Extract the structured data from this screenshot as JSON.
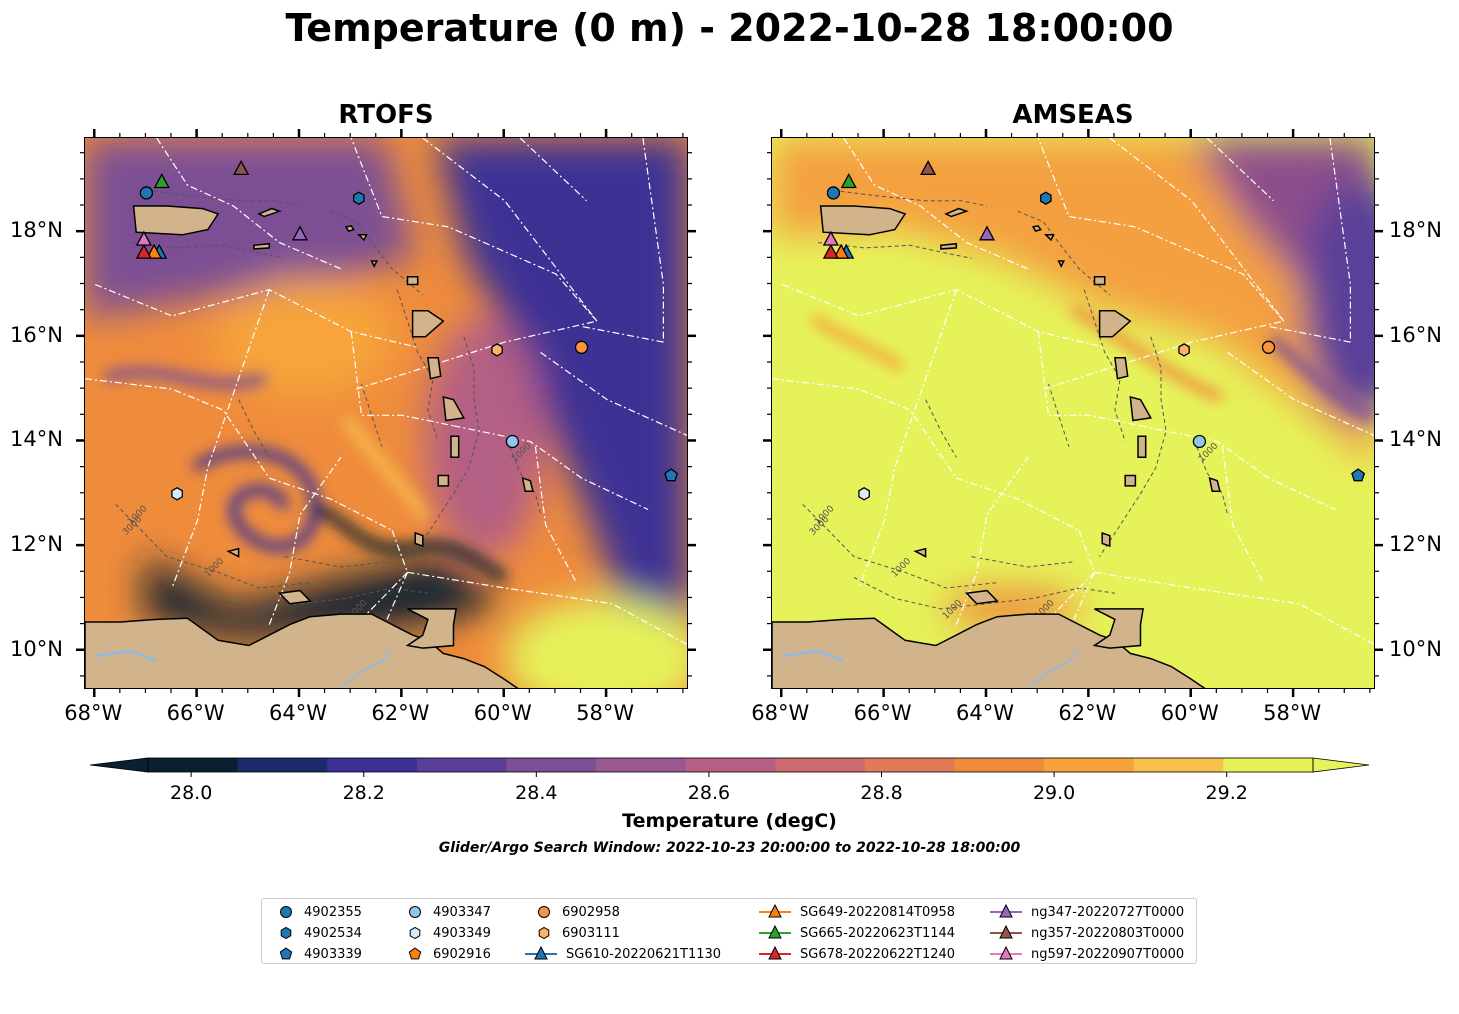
{
  "title": "Temperature (0 m) - 2022-10-28 18:00:00",
  "panels": [
    {
      "title": "RTOFS",
      "colors": {
        "open_ocean": "#3c3094",
        "mid": "#ef8c3c",
        "warm": "#f9c04c",
        "cold": "#082030"
      }
    },
    {
      "title": "AMSEAS",
      "colors": {
        "open_ocean": "#8c4e8c",
        "mid": "#f4a040",
        "warm": "#e6f25a",
        "cold": "#e6f25a"
      }
    }
  ],
  "axes": {
    "lat_ticks": [
      "18°N",
      "16°N",
      "14°N",
      "12°N",
      "10°N"
    ],
    "lon_ticks": [
      "68°W",
      "66°W",
      "64°W",
      "62°W",
      "60°W",
      "58°W"
    ]
  },
  "colors": {
    "land": "#d2b48c",
    "river": "#9ab8d8",
    "boundary": "#ffffff",
    "contour": "#555555"
  },
  "contour_labels": [
    "1000",
    "1000",
    "1000",
    "3000",
    "1000",
    "1000"
  ],
  "colorbar": {
    "label": "Temperature (degC)",
    "ticks": [
      "28.0",
      "28.2",
      "28.4",
      "28.6",
      "28.8",
      "29.0",
      "29.2"
    ],
    "min": 27.95,
    "max": 29.3,
    "colors": [
      "#082030",
      "#1b2a6b",
      "#3c3094",
      "#5a3f98",
      "#7c4f94",
      "#9a5890",
      "#b45f84",
      "#cc6a70",
      "#e07a58",
      "#ef8c3c",
      "#f6a43a",
      "#f9c04c",
      "#e6f25a"
    ]
  },
  "subtitle": "Glider/Argo Search Window: 2022-10-23 20:00:00 to 2022-10-28 18:00:00",
  "legend": [
    {
      "label": "4902355",
      "marker": "circle",
      "color": "#1f77b4"
    },
    {
      "label": "4902534",
      "marker": "hexagon",
      "color": "#1f77b4"
    },
    {
      "label": "4903339",
      "marker": "pentagon",
      "color": "#1f77b4"
    },
    {
      "label": "4903347",
      "marker": "circle",
      "color": "#8fc6ea"
    },
    {
      "label": "4903349",
      "marker": "hexagon",
      "color": "#d6ecfa"
    },
    {
      "label": "6902916",
      "marker": "pentagon",
      "color": "#ff7f0e"
    },
    {
      "label": "6902958",
      "marker": "circle",
      "color": "#f7953a"
    },
    {
      "label": "6903111",
      "marker": "hexagon",
      "color": "#fdb26a"
    },
    {
      "label": "SG610-20220621T1130",
      "marker": "triangle-line",
      "color": "#1f77b4"
    },
    {
      "label": "SG649-20220814T0958",
      "marker": "triangle-line",
      "color": "#ff7f0e"
    },
    {
      "label": "SG665-20220623T1144",
      "marker": "triangle-line",
      "color": "#2ca02c"
    },
    {
      "label": "SG678-20220622T1240",
      "marker": "triangle-line",
      "color": "#d62728"
    },
    {
      "label": "ng347-20220727T0000",
      "marker": "triangle-line",
      "color": "#9467bd"
    },
    {
      "label": "ng357-20220803T0000",
      "marker": "triangle-line",
      "color": "#8c564b"
    },
    {
      "label": "ng597-20220907T0000",
      "marker": "triangle-line",
      "color": "#e377c2"
    }
  ],
  "stations": [
    {
      "id": "4902355",
      "lon": -67.0,
      "lat": 18.75,
      "marker": "circle",
      "color": "#1f77b4"
    },
    {
      "id": "4902534",
      "lon": -62.85,
      "lat": 18.65,
      "marker": "hexagon",
      "color": "#1f77b4"
    },
    {
      "id": "4903339",
      "lon": -56.75,
      "lat": 13.35,
      "marker": "pentagon",
      "color": "#1f77b4"
    },
    {
      "id": "4903347",
      "lon": -59.85,
      "lat": 14.0,
      "marker": "circle",
      "color": "#8fc6ea"
    },
    {
      "id": "4903349",
      "lon": -66.4,
      "lat": 13.0,
      "marker": "hexagon",
      "color": "#d6ecfa"
    },
    {
      "id": "6902958",
      "lon": -58.5,
      "lat": 15.8,
      "marker": "circle",
      "color": "#f7953a"
    },
    {
      "id": "6903111",
      "lon": -60.15,
      "lat": 15.75,
      "marker": "hexagon",
      "color": "#fdb26a"
    },
    {
      "id": "SG610",
      "lon": -66.75,
      "lat": 17.6,
      "marker": "triangle",
      "color": "#1f77b4"
    },
    {
      "id": "SG649",
      "lon": -66.85,
      "lat": 17.6,
      "marker": "triangle",
      "color": "#ff7f0e"
    },
    {
      "id": "SG665",
      "lon": -66.7,
      "lat": 18.95,
      "marker": "triangle",
      "color": "#2ca02c"
    },
    {
      "id": "SG678",
      "lon": -67.05,
      "lat": 17.6,
      "marker": "triangle",
      "color": "#d62728"
    },
    {
      "id": "ng347",
      "lon": -64.0,
      "lat": 17.95,
      "marker": "triangle",
      "color": "#9467bd"
    },
    {
      "id": "ng357",
      "lon": -65.15,
      "lat": 19.2,
      "marker": "triangle",
      "color": "#8c564b"
    },
    {
      "id": "ng597",
      "lon": -67.05,
      "lat": 17.85,
      "marker": "triangle",
      "color": "#e377c2"
    }
  ],
  "map_extent": {
    "lon_min": -68.2,
    "lon_max": -56.4,
    "lat_min": 9.25,
    "lat_max": 19.8
  }
}
